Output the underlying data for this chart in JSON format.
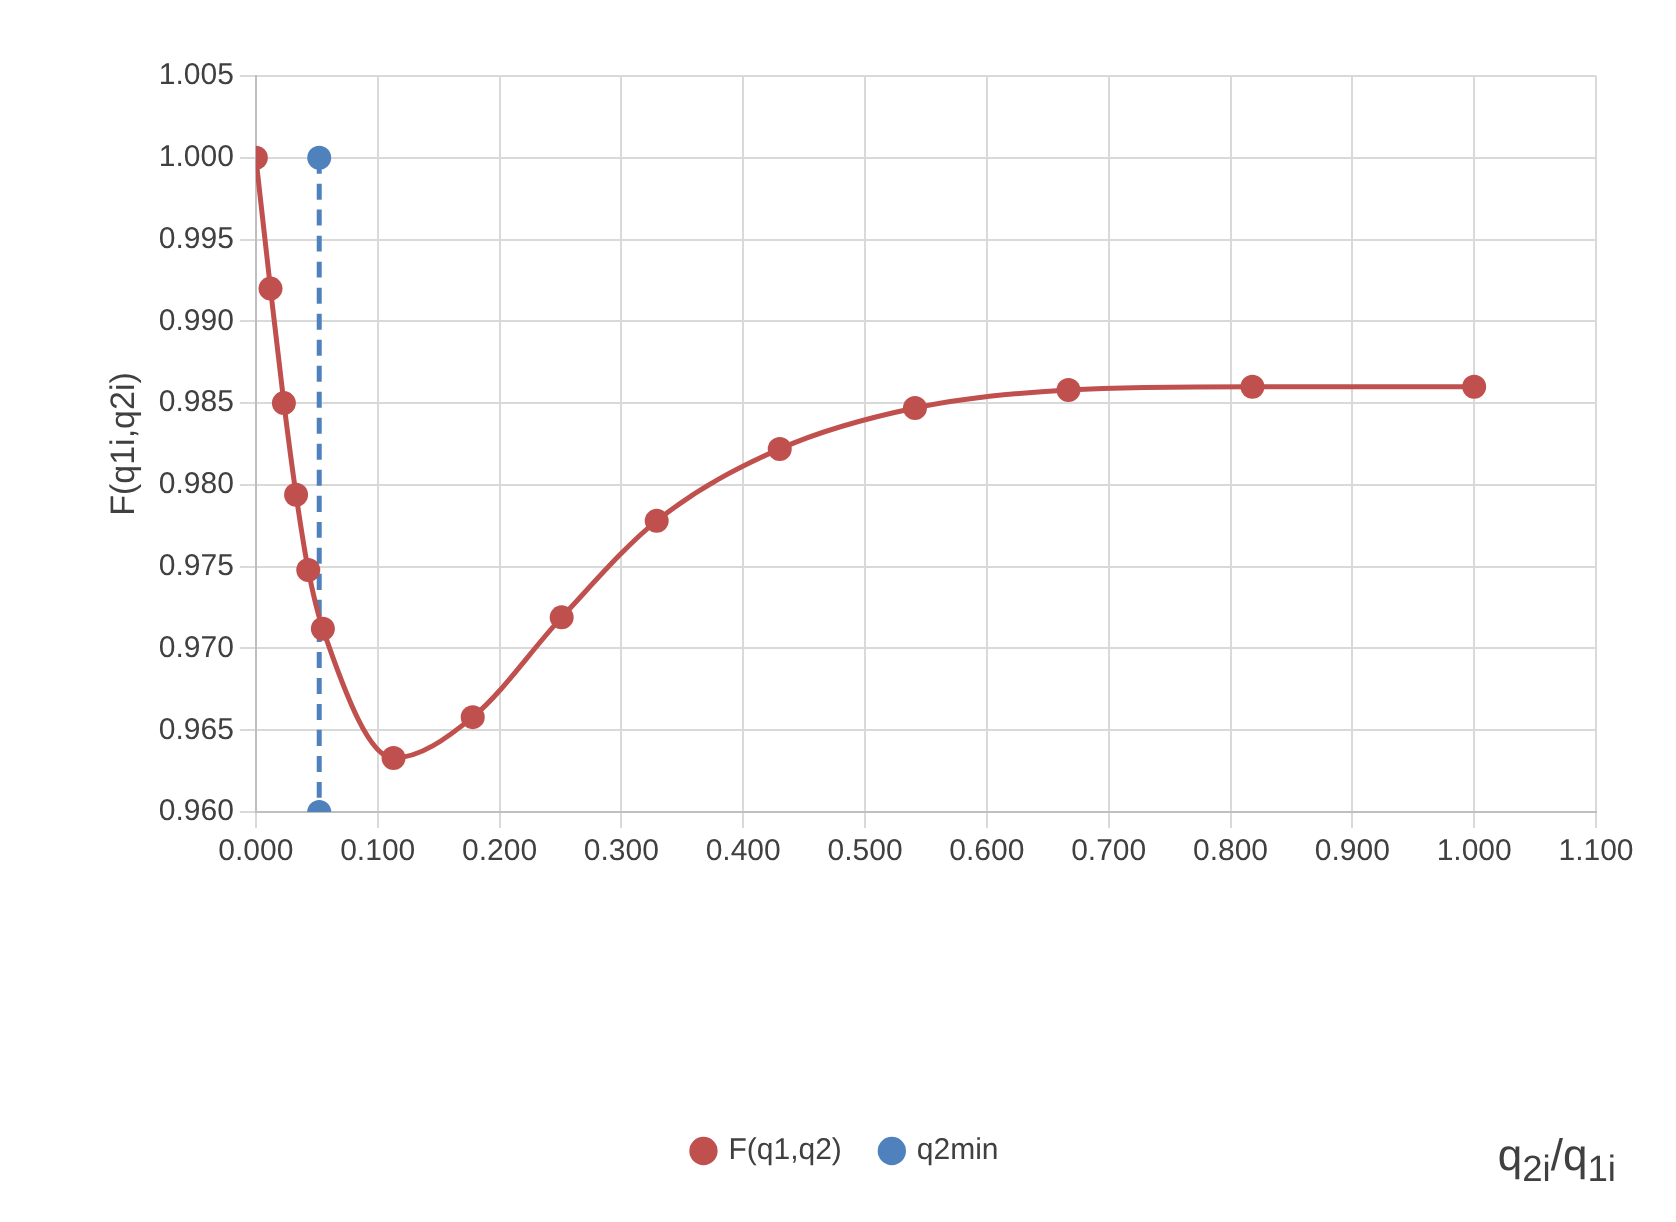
{
  "chart_data": {
    "type": "scatter",
    "annotations": [
      "q$_{2i}$/q$_{1i}$"
    ],
    "ylabel": "F(q1i,q2i)",
    "series": [
      {
        "name": "F(q1,q2)",
        "type": "line",
        "color": "#c0504d",
        "marker": "circle",
        "line_style": "solid",
        "x": [
          0,
          0.012,
          0.023,
          0.033,
          0.043,
          0.055,
          0.113,
          0.178,
          0.251,
          0.329,
          0.43,
          0.541,
          0.667,
          0.818,
          1.0
        ],
        "values": [
          1.0,
          0.992,
          0.985,
          0.9794,
          0.9748,
          0.9712,
          0.9633,
          0.9658,
          0.9719,
          0.9778,
          0.9822,
          0.9847,
          0.9858,
          0.986,
          0.986
        ]
      },
      {
        "name": "q2min",
        "type": "line",
        "color": "#4f81bd",
        "marker": "circle",
        "line_style": "dashed",
        "x": [
          0.052,
          0.052
        ],
        "values": [
          1.0,
          0.96
        ]
      }
    ],
    "xlim": [
      0,
      1.1
    ],
    "xticks": [
      {
        "value": 0,
        "label": "0.000"
      },
      {
        "value": 0.1,
        "label": "0.100"
      },
      {
        "value": 0.2,
        "label": "0.200"
      },
      {
        "value": 0.3,
        "label": "0.300"
      },
      {
        "value": 0.4,
        "label": "0.400"
      },
      {
        "value": 0.5,
        "label": "0.500"
      },
      {
        "value": 0.6,
        "label": "0.600"
      },
      {
        "value": 0.7,
        "label": "0.700"
      },
      {
        "value": 0.8,
        "label": "0.800"
      },
      {
        "value": 0.9,
        "label": "0.900"
      },
      {
        "value": 1.0,
        "label": "1.000"
      },
      {
        "value": 1.1,
        "label": "1.100"
      }
    ],
    "ylim": [
      0.96,
      1.005
    ],
    "yticks": [
      {
        "value": 0.96,
        "label": "0.960"
      },
      {
        "value": 0.965,
        "label": "0.965"
      },
      {
        "value": 0.97,
        "label": "0.970"
      },
      {
        "value": 0.975,
        "label": "0.975"
      },
      {
        "value": 0.98,
        "label": "0.980"
      },
      {
        "value": 0.985,
        "label": "0.985"
      },
      {
        "value": 0.99,
        "label": "0.990"
      },
      {
        "value": 0.995,
        "label": "0.995"
      },
      {
        "value": 1.0,
        "label": "1.000"
      },
      {
        "value": 1.005,
        "label": "1.005"
      }
    ],
    "grid": true,
    "legend": "bottom"
  }
}
